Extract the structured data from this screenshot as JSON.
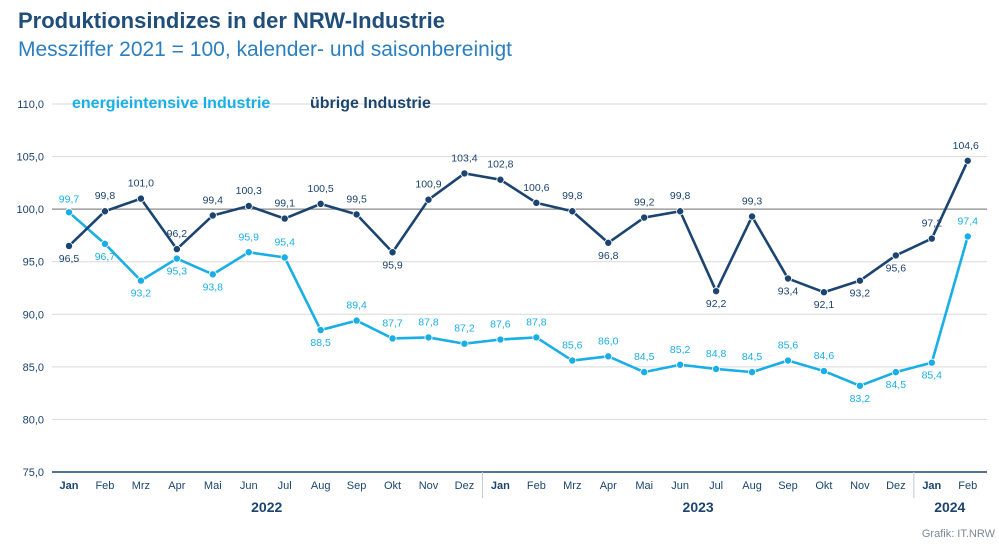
{
  "header": {
    "title": "Produktionsindizes in der NRW-Industrie",
    "subtitle": "Messziffer 2021 = 100, kalender- und saisonbereinigt"
  },
  "credit": "Grafik: IT.NRW",
  "colors": {
    "energy": "#19aee6",
    "other": "#1b4470",
    "grid": "#d9d9d9",
    "axis": "#1b4470",
    "tick_text": "#1b4470"
  },
  "chart_data": {
    "type": "line",
    "ylim": [
      75,
      110
    ],
    "y_ticks": [
      "75,0",
      "80,0",
      "85,0",
      "90,0",
      "95,0",
      "100,0",
      "105,0",
      "110,0"
    ],
    "y_tick_values": [
      75,
      80,
      85,
      90,
      95,
      100,
      105,
      110
    ],
    "categories": [
      "Jan",
      "Feb",
      "Mrz",
      "Apr",
      "Mai",
      "Jun",
      "Jul",
      "Aug",
      "Sep",
      "Okt",
      "Nov",
      "Dez",
      "Jan",
      "Feb",
      "Mrz",
      "Apr",
      "Mai",
      "Jun",
      "Jul",
      "Aug",
      "Sep",
      "Okt",
      "Nov",
      "Dez",
      "Jan",
      "Feb"
    ],
    "bold_categories": [
      0,
      12,
      24
    ],
    "years": [
      {
        "label": "2022",
        "from": 0,
        "to": 11
      },
      {
        "label": "2023",
        "from": 12,
        "to": 23
      },
      {
        "label": "2024",
        "from": 24,
        "to": 25
      }
    ],
    "legend_position": "top-left",
    "series": [
      {
        "name": "energieintensive Industrie",
        "color": "#19aee6",
        "values": [
          99.7,
          96.7,
          93.2,
          95.3,
          93.8,
          95.9,
          95.4,
          88.5,
          89.4,
          87.7,
          87.8,
          87.2,
          87.6,
          87.8,
          85.6,
          86.0,
          84.5,
          85.2,
          84.8,
          84.5,
          85.6,
          84.6,
          83.2,
          84.5,
          85.4,
          97.4
        ],
        "labels": [
          "99,7",
          "96,7",
          "93,2",
          "95,3",
          "93,8",
          "95,9",
          "95,4",
          "88,5",
          "89,4",
          "87,7",
          "87,8",
          "87,2",
          "87,6",
          "87,8",
          "85,6",
          "86,0",
          "84,5",
          "85,2",
          "84,8",
          "84,5",
          "85,6",
          "84,6",
          "83,2",
          "84,5",
          "85,4",
          "97,4"
        ]
      },
      {
        "name": "übrige Industrie",
        "color": "#1b4470",
        "values": [
          96.5,
          99.8,
          101.0,
          96.2,
          99.4,
          100.3,
          99.1,
          100.5,
          99.5,
          95.9,
          100.9,
          103.4,
          102.8,
          100.6,
          99.8,
          96.8,
          99.2,
          99.8,
          92.2,
          99.3,
          93.4,
          92.1,
          93.2,
          95.6,
          97.2,
          104.6
        ],
        "labels": [
          "96,5",
          "99,8",
          "101,0",
          "96,2",
          "99,4",
          "100,3",
          "99,1",
          "100,5",
          "99,5",
          "95,9",
          "100,9",
          "103,4",
          "102,8",
          "100,6",
          "99,8",
          "96,8",
          "99,2",
          "99,8",
          "92,2",
          "99,3",
          "93,4",
          "92,1",
          "93,2",
          "95,6",
          "97,2",
          "104,6"
        ]
      }
    ]
  }
}
